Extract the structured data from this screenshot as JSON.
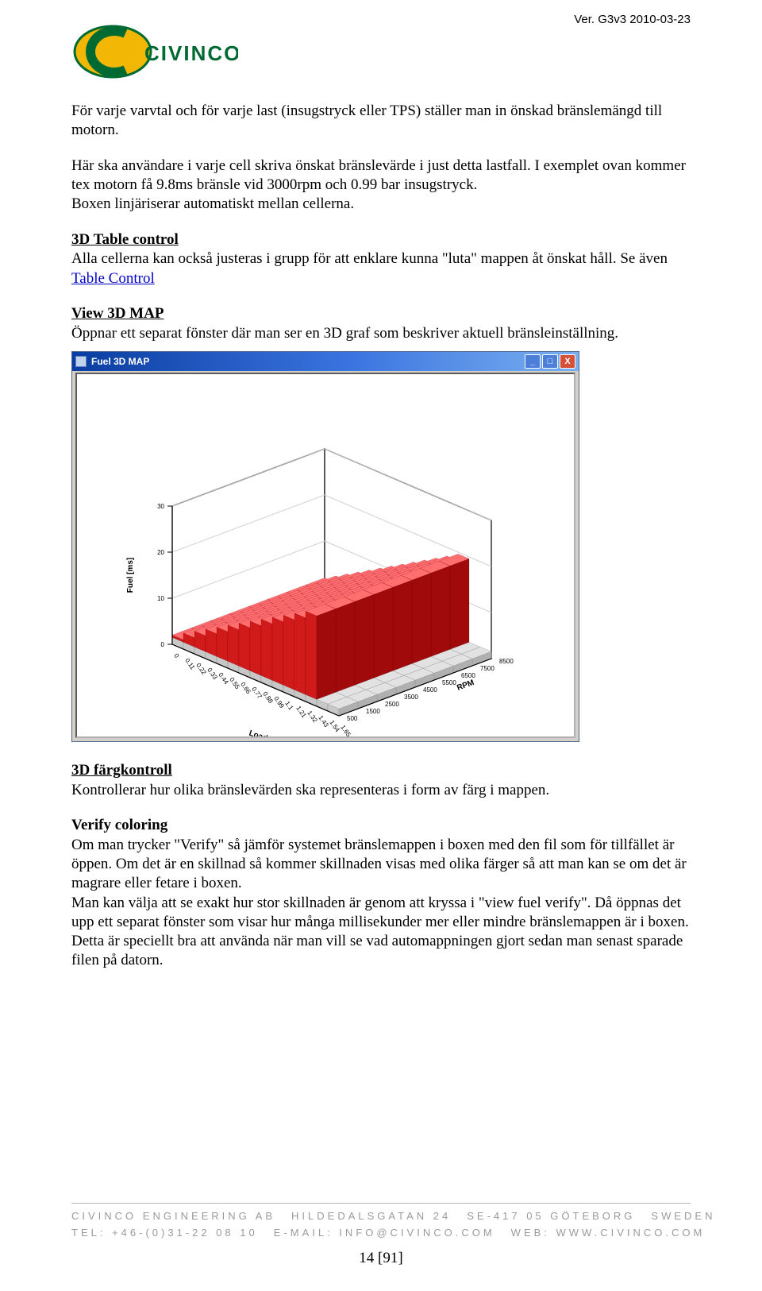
{
  "version": "Ver. G3v3 2010-03-23",
  "logo": {
    "text": "CIVINCO",
    "letter": "C",
    "bg": "#f2b705",
    "textcolor": "#006a33",
    "outline": "#006a33"
  },
  "p1": "För varje varvtal och för varje last (insugstryck eller TPS) ställer man in önskad bränslemängd till motorn.",
  "p2": "Här ska användare i varje cell skriva önskat bränslevärde i just detta lastfall. I exemplet ovan kommer tex motorn få 9.8ms bränsle vid 3000rpm och 0.99 bar insugstryck.",
  "p3": "Boxen linjäriserar automatiskt mellan cellerna.",
  "h1": "3D Table control",
  "p4a": "Alla cellerna kan också justeras i grupp för att enklare kunna \"luta\" mappen åt önskat håll. Se även ",
  "p4link": "Table Control",
  "h2": "View 3D MAP",
  "p5": "Öppnar ett separat fönster där man ser en 3D graf som beskriver aktuell bränsleinställning.",
  "window": {
    "title": "Fuel 3D MAP",
    "min": "_",
    "max": "□",
    "close": "X"
  },
  "chart": {
    "type": "3d-surface",
    "zlabel": "Fuel [ms]",
    "xlabel": "Load [%]",
    "ylabel": "RPM",
    "zticks": [
      "0",
      "10",
      "20",
      "30"
    ],
    "xticks": [
      "0",
      "0.11",
      "0.22",
      "0.33",
      "0.44",
      "0.55",
      "0.66",
      "0.77",
      "0.88",
      "0.99",
      "1.1",
      "1.21",
      "1.32",
      "1.43",
      "1.54",
      "1.65"
    ],
    "yticks": [
      "500",
      "1500",
      "2500",
      "3500",
      "4500",
      "5500",
      "6500",
      "7500",
      "8500"
    ],
    "bars_main_color": "#d11a1a",
    "bars_top_color": "#ff6f6f",
    "bars_side_color": "#a00a0a",
    "base_color": "#c8c8c8",
    "base_top": "#e2e2e2",
    "frame_color": "#000000",
    "bg": "#ffffff"
  },
  "h3": "3D färgkontroll",
  "p6": "Kontrollerar hur olika bränslevärden ska representeras i form av färg i mappen.",
  "h4": "Verify coloring",
  "p7": "Om man trycker \"Verify\" så jämför systemet bränslemappen i boxen med den fil som för tillfället är öppen. Om det är en skillnad så kommer skillnaden visas med olika färger så att man kan se om det är magrare eller fetare i boxen.",
  "p8": "Man kan välja att se exakt hur stor skillnaden är genom att kryssa i \"view fuel verify\". Då öppnas det upp ett separat fönster som visar hur många millisekunder mer eller mindre bränslemappen är i boxen. Detta är speciellt bra att använda när man vill se vad automappningen gjort sedan man senast sparade filen på datorn.",
  "footer": {
    "l1a": "CIVINCO ENGINEERING AB",
    "l1b": "HILDEDALSGATAN 24",
    "l1c": "SE-417 05 GÖTEBORG",
    "l1d": "SWEDEN",
    "l2a": "TEL: +46-(0)31-22 08 10",
    "l2b": "E-MAIL: INFO@CIVINCO.COM",
    "l2c": "WEB: WWW.CIVINCO.COM",
    "page": "14 [91]"
  }
}
